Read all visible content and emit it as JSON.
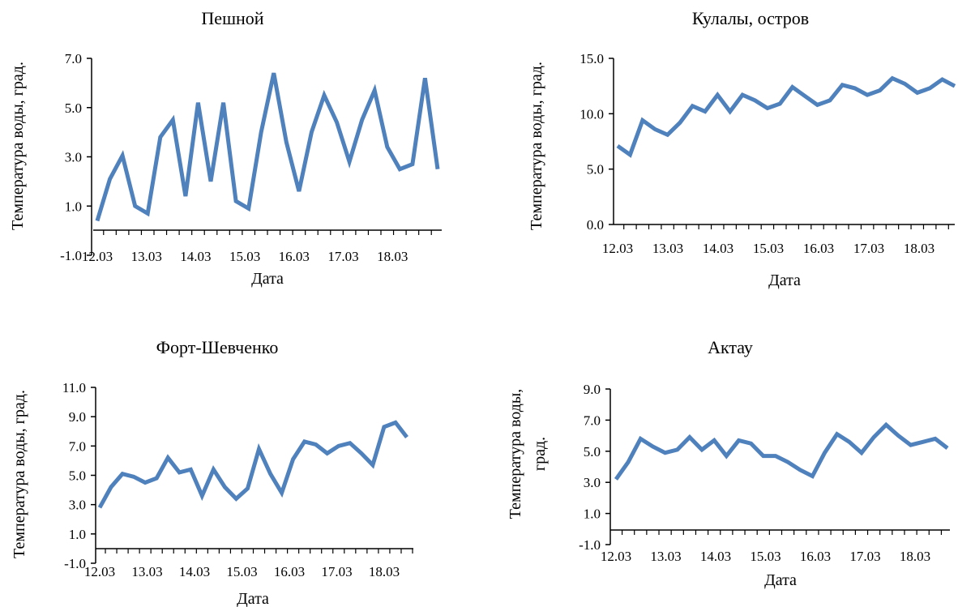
{
  "chart_data": [
    {
      "type": "line",
      "title": "Пешной",
      "xlabel": "Дата",
      "ylabel": "Температура  воды, град.",
      "ylabel_lines": [
        "Температура  воды, град."
      ],
      "x_tick_labels": [
        "12.03",
        "13.03",
        "14.03",
        "15.03",
        "16.03",
        "17.03",
        "18.03"
      ],
      "y_tick_labels": [
        "-1.0",
        "1.0",
        "3.0",
        "5.0",
        "7.0"
      ],
      "ylim": [
        -1.0,
        7.0
      ],
      "color": "#4f81bd",
      "series": [
        {
          "values": [
            0.4,
            2.1,
            3.05,
            1.0,
            0.7,
            3.8,
            4.5,
            1.4,
            5.2,
            2.0,
            5.2,
            1.2,
            0.9,
            4.0,
            6.4,
            3.6,
            1.6,
            4.0,
            5.5,
            4.4,
            2.8,
            4.5,
            5.7,
            3.4,
            2.5,
            2.7,
            6.2,
            2.5
          ]
        }
      ]
    },
    {
      "type": "line",
      "title": "Кулалы,  остров",
      "xlabel": "Дата",
      "ylabel": "Температура  воды, град.",
      "ylabel_lines": [
        "Температура  воды, град."
      ],
      "x_tick_labels": [
        "12.03",
        "13.03",
        "14.03",
        "15.03",
        "16.03",
        "17.03",
        "18.03"
      ],
      "y_tick_labels": [
        "0.0",
        "5.0",
        "10.0",
        "15.0"
      ],
      "ylim": [
        0.0,
        15.0
      ],
      "color": "#4f81bd",
      "series": [
        {
          "values": [
            7.1,
            6.3,
            9.4,
            8.6,
            8.1,
            9.2,
            10.7,
            10.2,
            11.7,
            10.2,
            11.7,
            11.2,
            10.5,
            10.9,
            12.4,
            11.6,
            10.8,
            11.2,
            12.6,
            12.3,
            11.7,
            12.1,
            13.2,
            12.7,
            11.9,
            12.3,
            13.1,
            12.5
          ]
        }
      ]
    },
    {
      "type": "line",
      "title": "Форт-Шевченко",
      "xlabel": "Дата",
      "ylabel": "Температура  воды, град.",
      "ylabel_lines": [
        "Температура  воды, град."
      ],
      "x_tick_labels": [
        "12.03",
        "13.03",
        "14.03",
        "15.03",
        "16.03",
        "17.03",
        "18.03"
      ],
      "y_tick_labels": [
        "-1.0",
        "1.0",
        "3.0",
        "5.0",
        "7.0",
        "9.0",
        "11.0"
      ],
      "ylim": [
        -1.0,
        11.0
      ],
      "color": "#4f81bd",
      "series": [
        {
          "values": [
            2.8,
            4.2,
            5.1,
            4.9,
            4.5,
            4.8,
            6.2,
            5.2,
            5.4,
            3.6,
            5.4,
            4.2,
            3.4,
            4.1,
            6.8,
            5.1,
            3.8,
            6.1,
            7.3,
            7.1,
            6.5,
            7.0,
            7.2,
            6.5,
            5.7,
            8.3,
            8.6,
            7.6
          ]
        }
      ]
    },
    {
      "type": "line",
      "title": "Актау",
      "xlabel": "Дата",
      "ylabel": "Температура  воды, град.",
      "ylabel_lines": [
        "Температура  воды,",
        "град."
      ],
      "x_tick_labels": [
        "12.03",
        "13.03",
        "14.03",
        "15.03",
        "16.03",
        "17.03",
        "18.03"
      ],
      "y_tick_labels": [
        "-1.0",
        "1.0",
        "3.0",
        "5.0",
        "7.0",
        "9.0"
      ],
      "ylim": [
        -1.0,
        9.0
      ],
      "color": "#4f81bd",
      "series": [
        {
          "values": [
            3.2,
            4.3,
            5.8,
            5.3,
            4.9,
            5.1,
            5.9,
            5.1,
            5.7,
            4.7,
            5.7,
            5.5,
            4.7,
            4.7,
            4.3,
            3.8,
            3.4,
            4.9,
            6.1,
            5.6,
            4.9,
            5.9,
            6.7,
            6.0,
            5.4,
            5.6,
            5.8,
            5.2
          ]
        }
      ]
    }
  ]
}
